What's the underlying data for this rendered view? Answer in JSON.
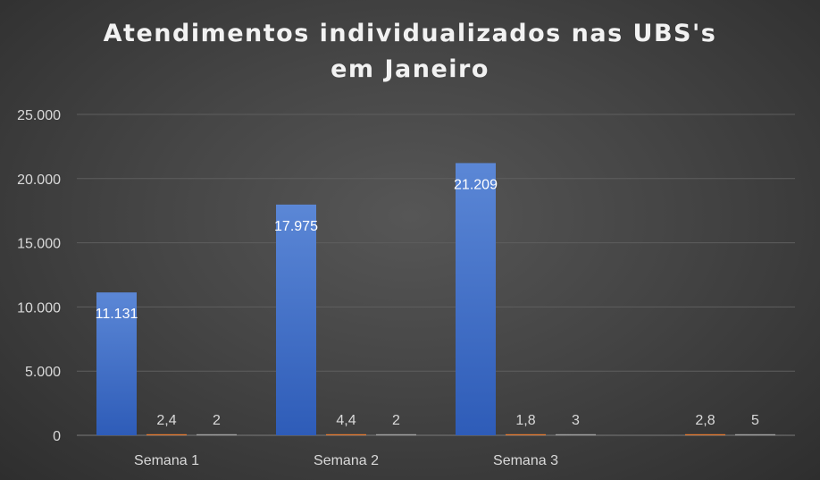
{
  "chart_data": {
    "type": "bar",
    "title_lines": [
      "Atendimentos individualizados nas UBS's",
      "em Janeiro"
    ],
    "categories": [
      "Semana 1",
      "Semana 2",
      "Semana 3",
      ""
    ],
    "series": [
      {
        "values": [
          11131,
          17975,
          21209,
          null
        ],
        "labels": [
          "11.131",
          "17.975",
          "21.209",
          ""
        ],
        "color": "#4472c4"
      },
      {
        "values": [
          2.4,
          4.4,
          1.8,
          2.8
        ],
        "labels": [
          "2,4",
          "4,4",
          "1,8",
          "2,8"
        ],
        "color": "#ed7d31"
      },
      {
        "values": [
          2,
          2,
          3,
          5
        ],
        "labels": [
          "2",
          "2",
          "3",
          "5"
        ],
        "color": "#a5a5a5"
      }
    ],
    "ylim": [
      0,
      25000
    ],
    "yticks": [
      0,
      5000,
      10000,
      15000,
      20000,
      25000
    ],
    "ytick_labels": [
      "0",
      "5.000",
      "10.000",
      "15.000",
      "20.000",
      "25.000"
    ],
    "xlabel": "",
    "ylabel": "",
    "grid": true,
    "background": "#454545",
    "gridline_color": "#5e5e5e",
    "text_color": "#d9d9d9"
  }
}
